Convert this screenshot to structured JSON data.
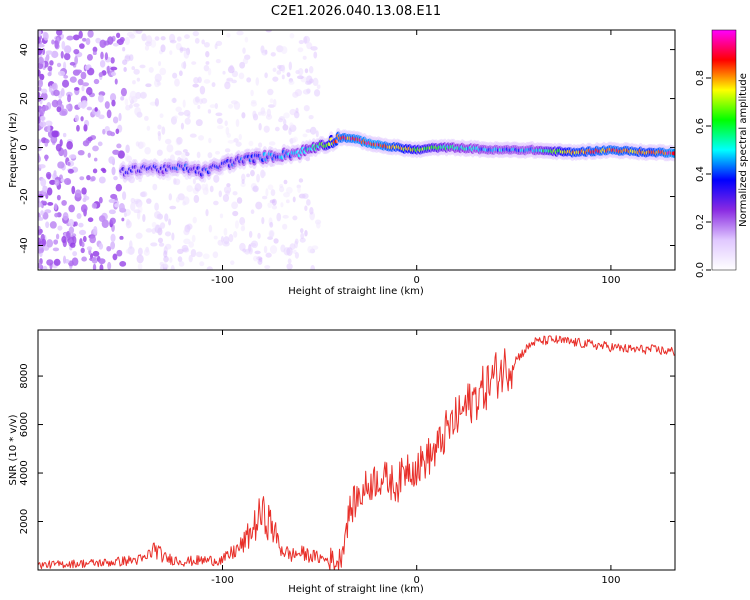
{
  "figure": {
    "title": "C2E1.2026.040.13.08.E11"
  },
  "chart_data": [
    {
      "type": "heatmap",
      "title": "C2E1.2026.040.13.08.E11",
      "xlabel": "Height of straight line (km)",
      "ylabel": "Frequency (Hz)",
      "xlim": [
        -195,
        133
      ],
      "ylim": [
        -50,
        48
      ],
      "xticks": [
        {
          "value": -100,
          "label": "-100"
        },
        {
          "value": 0,
          "label": "0"
        },
        {
          "value": 100,
          "label": "100"
        }
      ],
      "yticks": [
        {
          "value": 40,
          "label": "40"
        },
        {
          "value": 20,
          "label": "20"
        },
        {
          "value": 0,
          "label": "0"
        },
        {
          "value": -20,
          "label": "-20"
        },
        {
          "value": -40,
          "label": "-40"
        }
      ],
      "ridge_frequency_hz": {
        "x": [
          -150,
          -140,
          -130,
          -120,
          -110,
          -100,
          -90,
          -80,
          -70,
          -60,
          -50,
          -45,
          -40,
          -35,
          -30,
          -20,
          -10,
          0,
          10,
          20,
          40,
          60,
          80,
          100,
          120,
          133
        ],
        "y": [
          -10,
          -8,
          -9,
          -8,
          -10,
          -7,
          -5,
          -4,
          -3,
          -2,
          1,
          2,
          4,
          4,
          3,
          1,
          0,
          -1,
          0,
          0,
          -1,
          -1,
          -2,
          -1,
          -2,
          -2
        ]
      },
      "ridge_amplitude": {
        "x": [
          -150,
          -120,
          -100,
          -80,
          -60,
          -50,
          -40,
          -20,
          0,
          20,
          40,
          60,
          80,
          100,
          120,
          133
        ],
        "y": [
          0.3,
          0.35,
          0.35,
          0.4,
          0.45,
          0.55,
          0.85,
          0.9,
          0.7,
          0.5,
          0.45,
          0.45,
          0.8,
          0.85,
          0.8,
          0.9
        ]
      },
      "noise_region": {
        "x_range": [
          -195,
          -50
        ],
        "description_level": "scattered low-amplitude purple speckle"
      },
      "colorbar": {
        "label": "Normalized spectral amplitude",
        "range": [
          0,
          1
        ],
        "ticks": [
          {
            "value": 0.0,
            "label": "0.0"
          },
          {
            "value": 0.2,
            "label": "0.2"
          },
          {
            "value": 0.4,
            "label": "0.4"
          },
          {
            "value": 0.6,
            "label": "0.6"
          },
          {
            "value": 0.8,
            "label": "0.8"
          }
        ],
        "colormap": [
          "#ffffff",
          "#e0c8ff",
          "#8a2be2",
          "#0000ff",
          "#00ffff",
          "#00ff00",
          "#ffff00",
          "#ff0000",
          "#ff00ff"
        ]
      }
    },
    {
      "type": "line",
      "xlabel": "Height of straight line (km)",
      "ylabel": "SNR (10 * v/v)",
      "xlim": [
        -195,
        133
      ],
      "ylim": [
        0,
        9900
      ],
      "color": "#e8302a",
      "xticks": [
        {
          "value": -100,
          "label": "-100"
        },
        {
          "value": 0,
          "label": "0"
        },
        {
          "value": 100,
          "label": "100"
        }
      ],
      "yticks": [
        {
          "value": 2000,
          "label": "2000"
        },
        {
          "value": 4000,
          "label": "4000"
        },
        {
          "value": 6000,
          "label": "6000"
        },
        {
          "value": 8000,
          "label": "8000"
        }
      ],
      "series": [
        {
          "name": "SNR",
          "x": [
            -195,
            -180,
            -160,
            -140,
            -135,
            -130,
            -120,
            -110,
            -100,
            -95,
            -90,
            -85,
            -80,
            -75,
            -70,
            -65,
            -60,
            -55,
            -50,
            -45,
            -40,
            -38,
            -35,
            -32,
            -30,
            -25,
            -20,
            -15,
            -10,
            -5,
            0,
            5,
            10,
            15,
            20,
            25,
            30,
            35,
            40,
            45,
            50,
            55,
            60,
            70,
            80,
            90,
            100,
            110,
            120,
            133
          ],
          "y": [
            200,
            250,
            300,
            450,
            900,
            500,
            350,
            400,
            400,
            700,
            1000,
            1600,
            2300,
            1900,
            900,
            600,
            700,
            600,
            500,
            400,
            300,
            1000,
            2300,
            2800,
            3000,
            3500,
            3800,
            3700,
            3500,
            4300,
            4200,
            4600,
            4900,
            5700,
            6200,
            6700,
            7100,
            7500,
            8000,
            8300,
            8600,
            9000,
            9400,
            9500,
            9400,
            9300,
            9200,
            9100,
            9100,
            9000
          ]
        }
      ]
    }
  ]
}
